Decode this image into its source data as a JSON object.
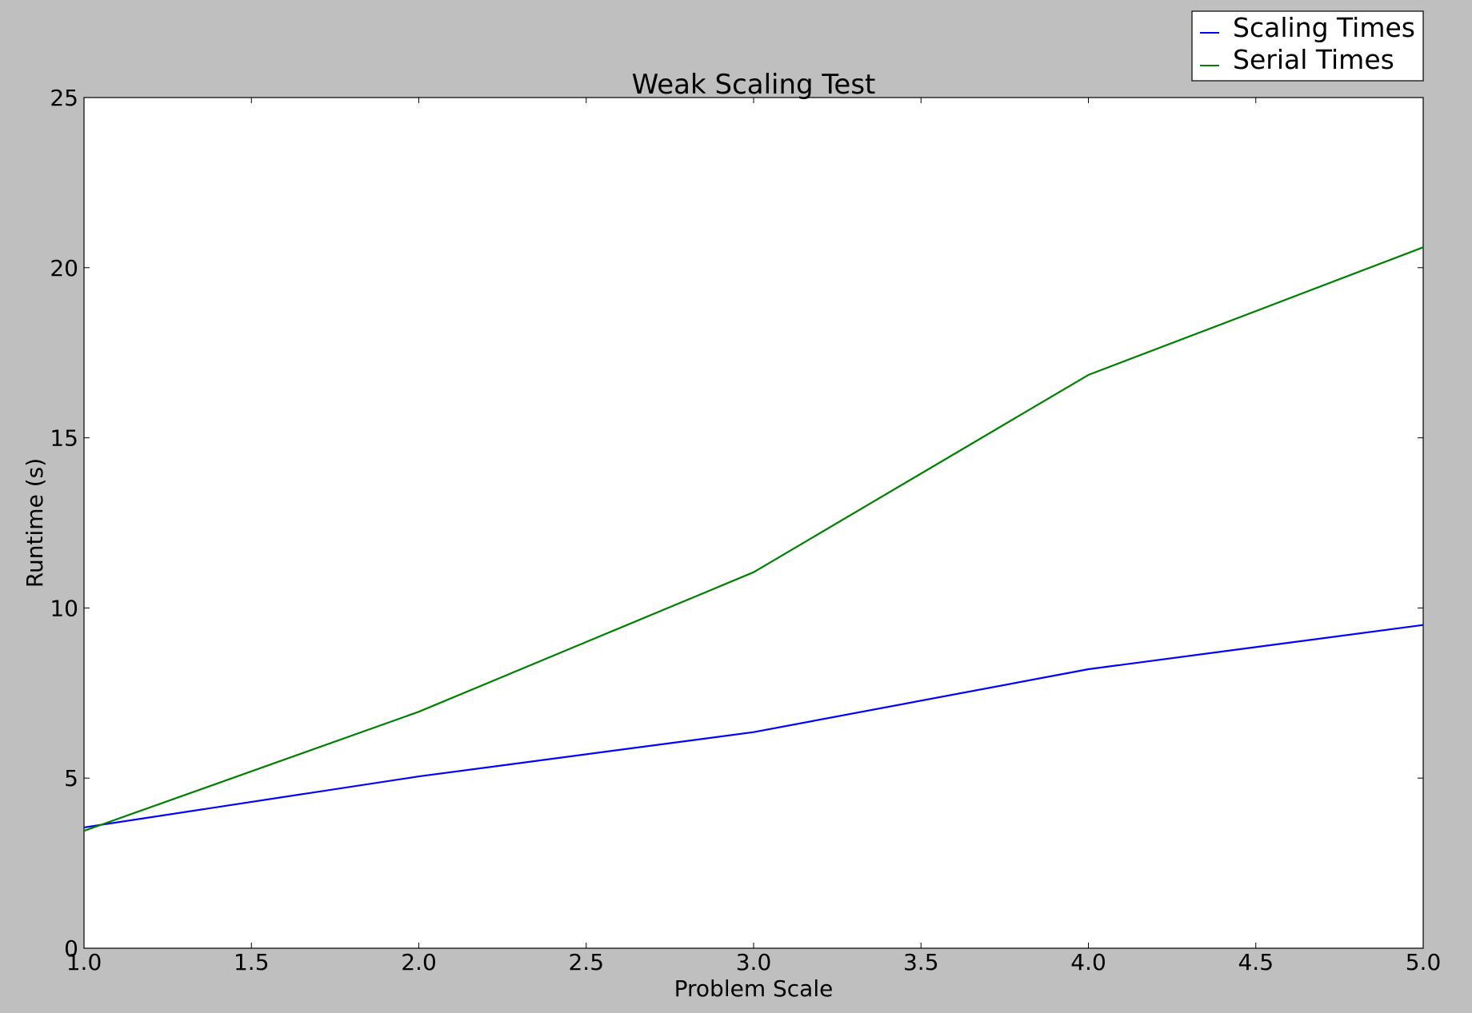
{
  "chart_data": {
    "type": "line",
    "title": "Weak Scaling Test",
    "xlabel": "Problem Scale",
    "ylabel": "Runtime (s)",
    "xlim": [
      1.0,
      5.0
    ],
    "ylim": [
      0,
      25
    ],
    "xticks": [
      1.0,
      1.5,
      2.0,
      2.5,
      3.0,
      3.5,
      4.0,
      4.5,
      5.0
    ],
    "xtick_labels": [
      "1.0",
      "1.5",
      "2.0",
      "2.5",
      "3.0",
      "3.5",
      "4.0",
      "4.5",
      "5.0"
    ],
    "yticks": [
      0,
      5,
      10,
      15,
      20,
      25
    ],
    "ytick_labels": [
      "0",
      "5",
      "10",
      "15",
      "20",
      "25"
    ],
    "x": [
      1,
      2,
      3,
      4,
      5
    ],
    "series": [
      {
        "name": "Scaling Times",
        "color": "#0000ff",
        "values": [
          3.55,
          5.05,
          6.35,
          8.2,
          9.5
        ]
      },
      {
        "name": "Serial Times",
        "color": "#008000",
        "values": [
          3.45,
          6.95,
          11.05,
          16.85,
          20.6
        ]
      }
    ],
    "grid": false,
    "legend_position": "top-right"
  }
}
